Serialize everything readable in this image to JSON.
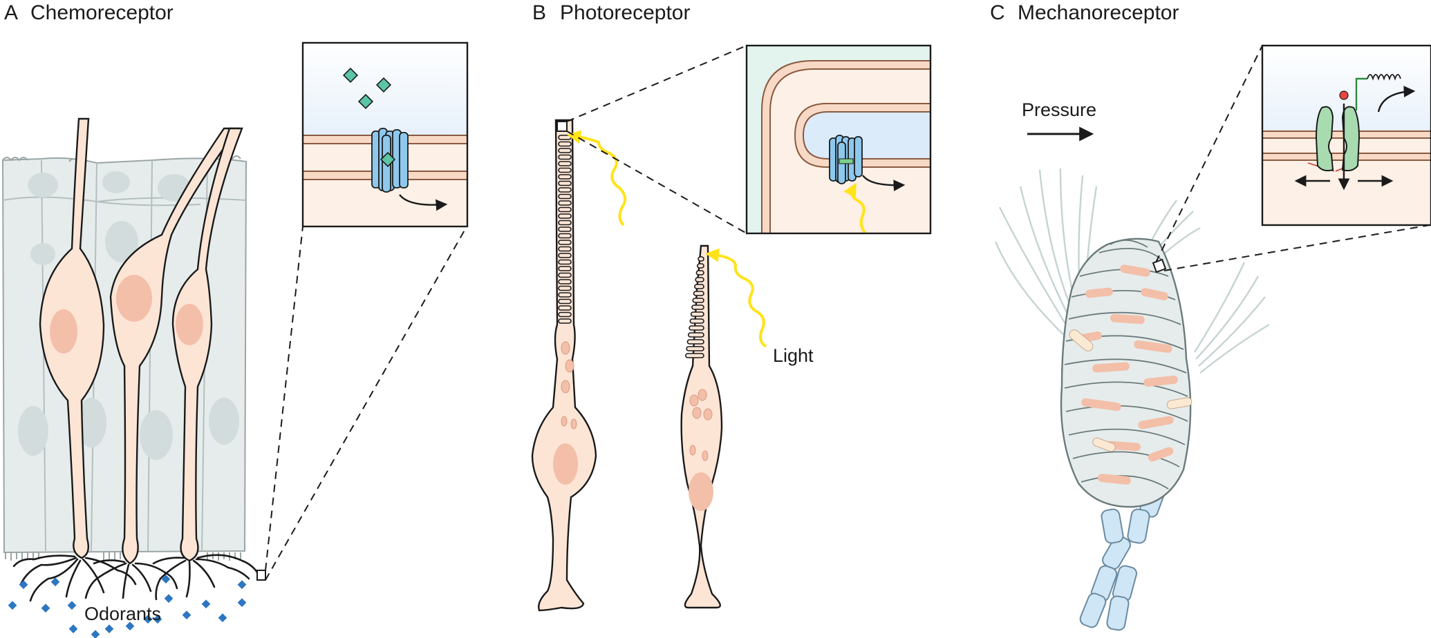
{
  "panels": [
    {
      "letter": "A",
      "title": "Chemoreceptor",
      "label": "Odorants"
    },
    {
      "letter": "B",
      "title": "Photoreceptor",
      "label": "Light"
    },
    {
      "letter": "C",
      "title": "Mechanoreceptor",
      "label": "Pressure"
    }
  ],
  "colors": {
    "cell_fill": "#fde5d6",
    "nucleus": "#f3bfa8",
    "support_cell": "#e6ecec",
    "channel": "#8ec8ec",
    "odorant": "#5cc6a4",
    "light": "#ffe31a",
    "mechano_channel": "#a9dbb0",
    "myelin": "#cfe6f6",
    "extracellular": "#dcebfa",
    "stroke": "#1a1a1a"
  }
}
